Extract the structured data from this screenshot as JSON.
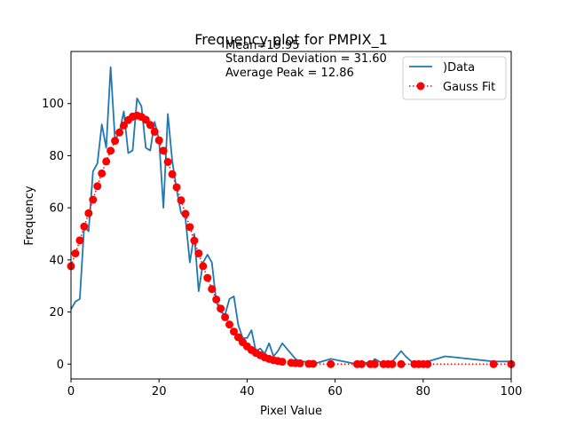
{
  "chart_data": {
    "type": "line",
    "title": "Frequency plot for PMPIX_1",
    "xlabel": "Pixel Value",
    "ylabel": "Frequency",
    "xlim": [
      0,
      100
    ],
    "ylim": [
      -5.7,
      120
    ],
    "xticks": [
      0,
      20,
      40,
      60,
      80,
      100
    ],
    "yticks": [
      0,
      20,
      40,
      60,
      80,
      100
    ],
    "grid": false,
    "legend_position": "top-right",
    "annotations": [
      "Mean=19.95",
      "Standard Deviation = 31.60",
      "Average Peak = 12.86"
    ],
    "series": [
      {
        "name": ")Data",
        "style": "solid-line",
        "color": "#1f77b4",
        "x": [
          0,
          1,
          2,
          3,
          4,
          5,
          6,
          7,
          8,
          9,
          10,
          11,
          12,
          13,
          14,
          15,
          16,
          17,
          18,
          19,
          20,
          21,
          22,
          23,
          24,
          25,
          26,
          27,
          28,
          29,
          30,
          31,
          32,
          33,
          34,
          35,
          36,
          37,
          38,
          39,
          40,
          41,
          42,
          43,
          44,
          45,
          46,
          47,
          48,
          49,
          50,
          51,
          52,
          53,
          54,
          55,
          59,
          65,
          66,
          68,
          69,
          70,
          71,
          72,
          73,
          75,
          76,
          78,
          79,
          80,
          81,
          85,
          96,
          100
        ],
        "y": [
          21,
          24,
          25,
          53,
          51,
          74,
          77,
          92,
          83,
          114,
          86,
          89,
          97,
          81,
          82,
          102,
          99,
          83,
          82,
          93,
          86,
          60,
          96,
          78,
          67,
          58,
          56,
          39,
          50,
          28,
          39,
          42,
          39,
          24,
          20,
          19,
          25,
          26,
          15,
          10,
          10,
          13,
          5,
          6,
          4,
          8,
          3,
          5,
          8,
          6,
          4,
          2,
          1,
          1,
          0,
          0,
          2,
          0,
          1,
          0,
          2,
          1,
          0,
          0,
          1,
          5,
          3,
          0,
          0,
          0,
          1,
          3,
          1,
          1
        ]
      },
      {
        "name": "Gauss Fit",
        "style": "dotted-circle",
        "color": "#ff0000",
        "x": [
          0,
          1,
          2,
          3,
          4,
          5,
          6,
          7,
          8,
          9,
          10,
          11,
          12,
          13,
          14,
          15,
          16,
          17,
          18,
          19,
          20,
          21,
          22,
          23,
          24,
          25,
          26,
          27,
          28,
          29,
          30,
          31,
          32,
          33,
          34,
          35,
          36,
          37,
          38,
          39,
          40,
          41,
          42,
          43,
          44,
          45,
          46,
          47,
          48,
          50,
          51,
          52,
          54,
          55,
          59,
          65,
          66,
          68,
          69,
          71,
          72,
          73,
          75,
          78,
          79,
          80,
          81,
          96,
          100
        ],
        "y": [
          37.6,
          42.5,
          47.5,
          52.8,
          57.9,
          63.1,
          68.3,
          73.2,
          77.8,
          81.9,
          85.7,
          88.9,
          91.6,
          93.7,
          95.0,
          95.4,
          94.9,
          93.8,
          91.8,
          89.2,
          85.9,
          81.9,
          77.6,
          72.9,
          67.9,
          62.9,
          57.7,
          52.6,
          47.4,
          42.5,
          37.6,
          33.1,
          28.8,
          24.8,
          21.3,
          18.0,
          15.2,
          12.5,
          10.3,
          8.4,
          6.8,
          5.4,
          4.3,
          3.4,
          2.6,
          2.0,
          1.5,
          1.2,
          0.9,
          0.5,
          0.4,
          0.3,
          0.1,
          0.1,
          0,
          0,
          0,
          0,
          0,
          0,
          0,
          0,
          0,
          0,
          0,
          0,
          0,
          0,
          0
        ]
      }
    ]
  }
}
